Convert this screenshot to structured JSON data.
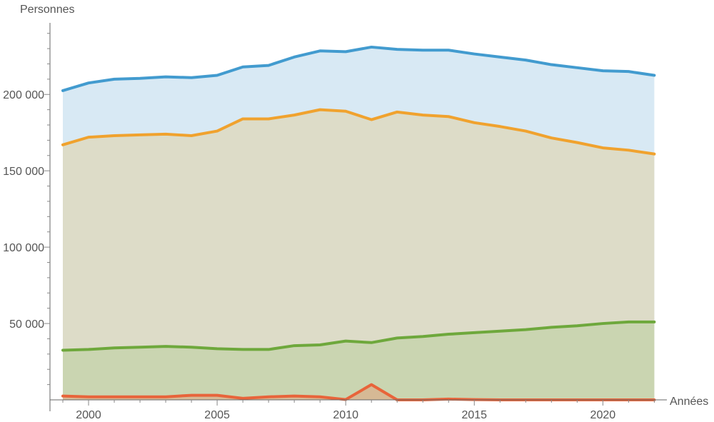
{
  "chart_data": {
    "type": "area",
    "title": "",
    "xlabel": "Années",
    "ylabel": "Personnes",
    "xlim": [
      1998.5,
      2022.6
    ],
    "ylim": [
      0,
      245000
    ],
    "x_ticks": [
      2000,
      2005,
      2010,
      2015,
      2020
    ],
    "x_tick_labels": [
      "2000",
      "2005",
      "2010",
      "2015",
      "2020"
    ],
    "y_ticks": [
      50000,
      100000,
      150000,
      200000
    ],
    "y_tick_labels": [
      "50 000",
      "100 000",
      "150 000",
      "200 000"
    ],
    "grid": false,
    "x": [
      1999,
      2000,
      2001,
      2002,
      2003,
      2004,
      2005,
      2006,
      2007,
      2008,
      2009,
      2010,
      2011,
      2012,
      2013,
      2014,
      2015,
      2016,
      2017,
      2018,
      2019,
      2020,
      2021,
      2022
    ],
    "series": [
      {
        "color": "#429bcf",
        "fill": "#d8e9f4",
        "values": [
          202500,
          207500,
          210000,
          210500,
          211500,
          211000,
          212500,
          218000,
          219000,
          224500,
          228500,
          228000,
          231000,
          229500,
          229000,
          229000,
          226500,
          224500,
          222500,
          219500,
          217500,
          215500,
          215000,
          212500
        ]
      },
      {
        "color": "#f0a22e",
        "fill": "#dddcc8",
        "values": [
          167000,
          172000,
          173000,
          173500,
          174000,
          173000,
          176000,
          184000,
          184000,
          186500,
          190000,
          189000,
          183500,
          188500,
          186500,
          185500,
          181500,
          179000,
          176000,
          171500,
          168500,
          165000,
          163500,
          161000
        ]
      },
      {
        "color": "#6ea83c",
        "fill": "#cad5b1",
        "values": [
          32500,
          33000,
          34000,
          34500,
          35000,
          34500,
          33500,
          33000,
          33000,
          35500,
          36000,
          38500,
          37500,
          40500,
          41500,
          43000,
          44000,
          45000,
          46000,
          47500,
          48500,
          50000,
          51000,
          51000
        ]
      },
      {
        "color": "#e8643a",
        "fill": "#d6b995",
        "values": [
          2500,
          2000,
          2000,
          2000,
          2000,
          3000,
          3000,
          1000,
          2000,
          2500,
          2000,
          200,
          10000,
          0,
          0,
          500,
          200,
          0,
          0,
          0,
          0,
          0,
          0,
          0
        ]
      }
    ]
  }
}
